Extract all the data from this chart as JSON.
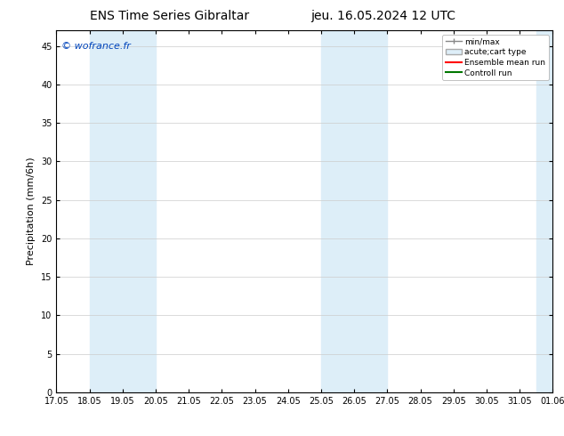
{
  "title_left": "ENS Time Series Gibraltar",
  "title_right": "jeu. 16.05.2024 12 UTC",
  "ylabel": "Precipitation (mm/6h)",
  "watermark": "© wofrance.fr",
  "ylim": [
    0,
    47
  ],
  "yticks": [
    0,
    5,
    10,
    15,
    20,
    25,
    30,
    35,
    40,
    45
  ],
  "xtick_labels": [
    "17.05",
    "18.05",
    "19.05",
    "20.05",
    "21.05",
    "22.05",
    "23.05",
    "24.05",
    "25.05",
    "26.05",
    "27.05",
    "28.05",
    "29.05",
    "30.05",
    "31.05",
    "01.06"
  ],
  "xlim": [
    0,
    15
  ],
  "shade_regions": [
    {
      "x_start": 1,
      "x_end": 3,
      "color": "#ddeef8"
    },
    {
      "x_start": 8,
      "x_end": 10,
      "color": "#ddeef8"
    },
    {
      "x_start": 14.5,
      "x_end": 15.0,
      "color": "#ddeef8"
    }
  ],
  "legend_items": [
    {
      "label": "min/max",
      "type": "errorbar",
      "color": "#aaaaaa"
    },
    {
      "label": "acute;cart type",
      "type": "box",
      "facecolor": "#ddeef8",
      "edgecolor": "#aaaaaa"
    },
    {
      "label": "Ensemble mean run",
      "type": "line",
      "color": "#ff0000"
    },
    {
      "label": "Controll run",
      "type": "line",
      "color": "#007700"
    }
  ],
  "background_color": "#ffffff",
  "grid_color": "#cccccc",
  "title_fontsize": 10,
  "tick_fontsize": 7,
  "ylabel_fontsize": 8,
  "watermark_color": "#0044bb",
  "watermark_fontsize": 8
}
